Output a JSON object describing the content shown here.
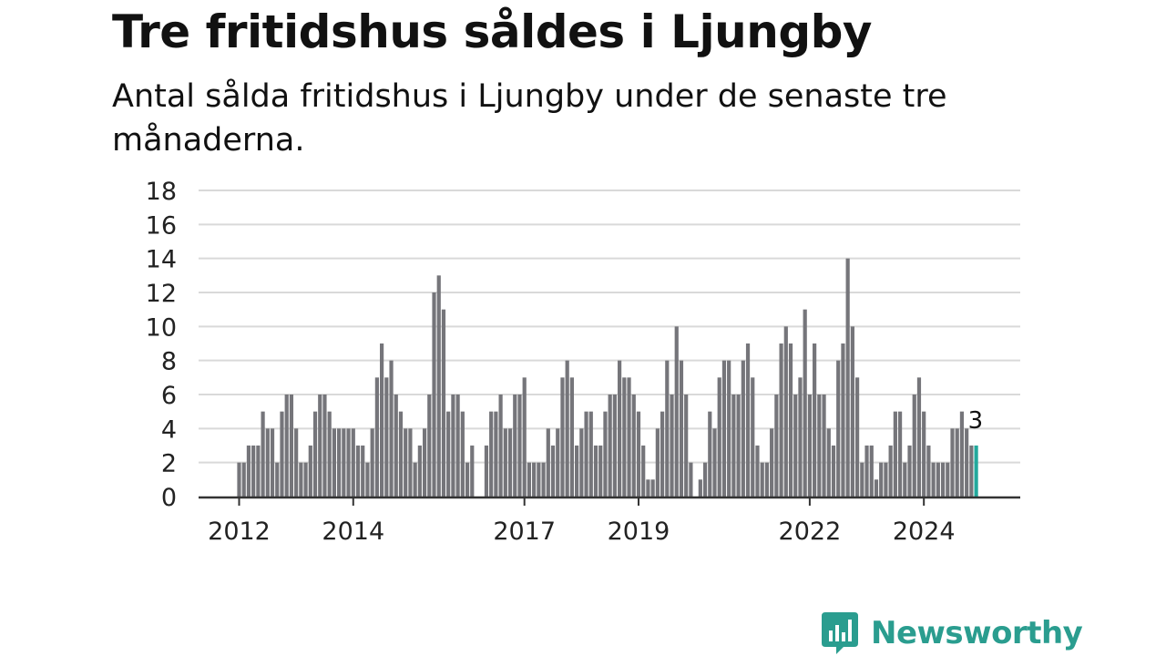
{
  "header": {
    "title": "Tre fritidshus såldes i Ljungby",
    "subtitle": "Antal sålda fritidshus i Ljungby under de senaste tre månaderna."
  },
  "brand": {
    "name": "Newsworthy",
    "icon": "newsworthy-logo-icon"
  },
  "colors": {
    "bar": "#75757a",
    "highlight": "#23a99c",
    "grid": "#d9d9d9",
    "axis": "#333333",
    "brand": "#2a9d8f"
  },
  "chart_data": {
    "type": "bar",
    "title": "",
    "xlabel": "",
    "ylabel": "",
    "ylim": [
      0,
      18
    ],
    "y_ticks": [
      0,
      2,
      4,
      6,
      8,
      10,
      12,
      14,
      16,
      18
    ],
    "x_tick_labels": [
      {
        "label": "2012",
        "index": 0
      },
      {
        "label": "2014",
        "index": 24
      },
      {
        "label": "2017",
        "index": 60
      },
      {
        "label": "2019",
        "index": 84
      },
      {
        "label": "2022",
        "index": 120
      },
      {
        "label": "2024",
        "index": 144
      }
    ],
    "grid": true,
    "note": "Monthly values, one bar per month from 2012 onward; last bar highlighted",
    "values": [
      2,
      2,
      3,
      3,
      3,
      5,
      4,
      4,
      2,
      5,
      6,
      6,
      4,
      2,
      2,
      3,
      5,
      6,
      6,
      5,
      4,
      4,
      4,
      4,
      4,
      3,
      3,
      2,
      4,
      7,
      9,
      7,
      8,
      6,
      5,
      4,
      4,
      2,
      3,
      4,
      6,
      12,
      13,
      11,
      5,
      6,
      6,
      5,
      2,
      3,
      0,
      0,
      3,
      5,
      5,
      6,
      4,
      4,
      6,
      6,
      7,
      2,
      2,
      2,
      2,
      4,
      3,
      4,
      7,
      8,
      7,
      3,
      4,
      5,
      5,
      3,
      3,
      5,
      6,
      6,
      8,
      7,
      7,
      6,
      5,
      3,
      1,
      1,
      4,
      5,
      8,
      6,
      10,
      8,
      6,
      2,
      0,
      1,
      2,
      5,
      4,
      7,
      8,
      8,
      6,
      6,
      8,
      9,
      7,
      3,
      2,
      2,
      4,
      6,
      9,
      10,
      9,
      6,
      7,
      11,
      6,
      9,
      6,
      6,
      4,
      3,
      8,
      9,
      14,
      10,
      7,
      2,
      3,
      3,
      1,
      2,
      2,
      3,
      5,
      5,
      2,
      3,
      6,
      7,
      5,
      3,
      2,
      2,
      2,
      2,
      4,
      4,
      5,
      4,
      3,
      3
    ],
    "highlight": {
      "index": 155,
      "label": "3"
    }
  }
}
